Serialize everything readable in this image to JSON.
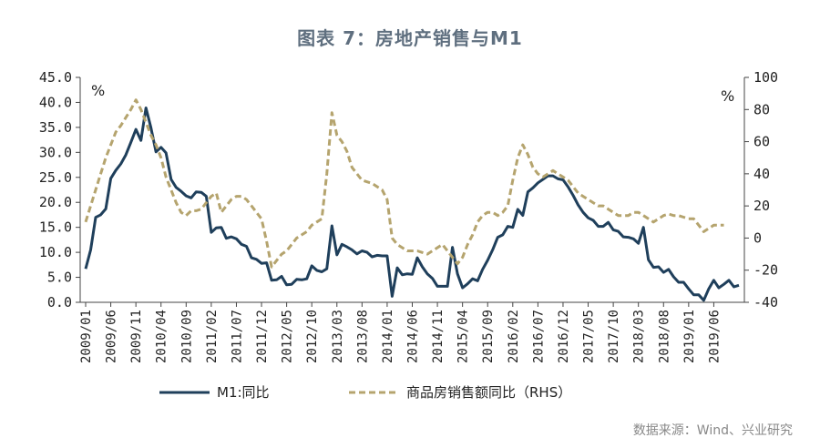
{
  "title": "图表 7：房地产销售与M1",
  "source": "数据来源：Wind、兴业研究",
  "chart_data": {
    "type": "line",
    "left_unit": "%",
    "right_unit": "%",
    "left_axis": {
      "min": 0,
      "max": 45,
      "step": 5,
      "tick_labels": [
        "0.0",
        "5.0",
        "10.0",
        "15.0",
        "20.0",
        "25.0",
        "30.0",
        "35.0",
        "40.0",
        "45.0"
      ]
    },
    "right_axis": {
      "min": -40,
      "max": 100,
      "step": 20,
      "tick_labels": [
        "-40",
        "-20",
        "0",
        "20",
        "40",
        "60",
        "80",
        "100"
      ]
    },
    "x_start": "2009/01",
    "x_tick_labels": [
      "2009/01",
      "2009/06",
      "2009/11",
      "2010/04",
      "2010/09",
      "2011/02",
      "2011/07",
      "2011/12",
      "2012/05",
      "2012/10",
      "2013/03",
      "2013/08",
      "2014/01",
      "2014/06",
      "2014/11",
      "2015/04",
      "2015/09",
      "2016/02",
      "2016/07",
      "2016/12",
      "2017/05",
      "2017/10",
      "2018/03",
      "2018/08",
      "2019/01",
      "2019/06"
    ],
    "grid": false,
    "legend_position": "bottom",
    "series": [
      {
        "name": "M1:同比",
        "axis": "left",
        "color": "#1f3f5b",
        "style": "solid",
        "values": [
          6.7,
          10.5,
          17.0,
          17.5,
          18.7,
          24.8,
          26.4,
          27.7,
          29.5,
          32.0,
          34.6,
          32.4,
          38.9,
          34.9,
          30.1,
          31.0,
          29.9,
          24.6,
          23.0,
          22.2,
          21.3,
          20.9,
          22.1,
          22.0,
          21.2,
          14.0,
          14.9,
          15.0,
          12.8,
          13.1,
          12.7,
          11.6,
          11.2,
          8.9,
          8.6,
          7.8,
          7.9,
          4.4,
          4.5,
          5.2,
          3.5,
          3.6,
          4.6,
          4.5,
          4.7,
          7.3,
          6.4,
          6.1,
          6.7,
          15.3,
          9.5,
          11.6,
          11.1,
          10.5,
          9.7,
          10.3,
          10.0,
          9.1,
          9.4,
          9.3,
          9.3,
          1.2,
          6.9,
          5.5,
          5.7,
          5.6,
          8.9,
          7.1,
          5.7,
          4.8,
          3.2,
          3.2,
          3.2,
          11.0,
          5.7,
          2.9,
          3.7,
          4.7,
          4.3,
          6.6,
          8.4,
          10.5,
          13.0,
          13.5,
          15.2,
          15.0,
          18.6,
          17.4,
          22.1,
          22.9,
          23.9,
          24.6,
          25.3,
          25.3,
          24.7,
          24.5,
          23.1,
          21.4,
          19.5,
          18.0,
          16.9,
          16.4,
          15.2,
          15.2,
          16.0,
          14.5,
          14.2,
          13.1,
          13.0,
          12.7,
          11.8,
          15.0,
          8.5,
          7.0,
          7.1,
          6.0,
          6.6,
          5.1,
          4.0,
          4.0,
          2.7,
          1.5,
          1.5,
          0.4,
          2.7,
          4.4,
          2.9,
          3.6,
          4.4,
          3.1,
          3.4
        ]
      },
      {
        "name": "商品房销售额同比（RHS）",
        "axis": "right",
        "color": "#b5a46e",
        "style": "dashed",
        "values": [
          10,
          20,
          30,
          40,
          50,
          58,
          66,
          70,
          75,
          80,
          86,
          80,
          72,
          64,
          58,
          50,
          38,
          30,
          22,
          16,
          14,
          17,
          17,
          18,
          22,
          26,
          28,
          16,
          20,
          24,
          26,
          26,
          24,
          20,
          16,
          12,
          -2,
          -18,
          -14,
          -10,
          -8,
          -4,
          0,
          2,
          4,
          8,
          10,
          12,
          40,
          78,
          64,
          60,
          54,
          44,
          40,
          36,
          35,
          34,
          32,
          30,
          24,
          0,
          -4,
          -6,
          -8,
          -8,
          -8,
          -9,
          -10,
          -8,
          -6,
          -4,
          -8,
          -12,
          -16,
          -12,
          -4,
          2,
          10,
          14,
          16,
          16,
          14,
          16,
          20,
          36,
          50,
          58,
          52,
          44,
          40,
          38,
          40,
          42,
          40,
          38,
          36,
          32,
          28,
          26,
          24,
          22,
          20,
          20,
          18,
          16,
          14,
          14,
          14,
          16,
          16,
          14,
          12,
          10,
          12,
          14,
          15,
          14,
          14,
          13,
          12,
          12,
          8,
          4,
          6,
          8,
          8,
          8
        ]
      }
    ]
  }
}
